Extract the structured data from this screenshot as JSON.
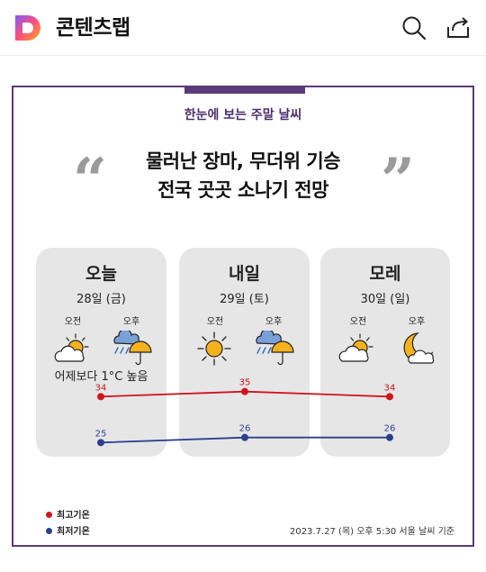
{
  "header": {
    "title": "콘텐츠랩",
    "logo_icon": "logo-d-icon",
    "search_icon": "search-icon",
    "share_icon": "share-icon"
  },
  "card": {
    "subtitle": "한눈에 보는 주말 날씨",
    "headline_line1": "물러난 장마, 무더위 기승",
    "headline_line2": "전국 곳곳 소나기 전망",
    "quote_open": "“",
    "quote_close": "”",
    "accent_color": "#5a3a78",
    "days": [
      {
        "name": "오늘",
        "date": "28일 (금)",
        "am_label": "오전",
        "pm_label": "오후",
        "am_icon": "partly-cloudy-icon",
        "pm_icon": "rain-umbrella-icon",
        "note": "어제보다 1°C 높음"
      },
      {
        "name": "내일",
        "date": "29일 (토)",
        "am_label": "오전",
        "pm_label": "오후",
        "am_icon": "sun-icon",
        "pm_icon": "rain-umbrella-icon",
        "note": ""
      },
      {
        "name": "모레",
        "date": "30일 (일)",
        "am_label": "오전",
        "pm_label": "오후",
        "am_icon": "partly-cloudy-icon",
        "pm_icon": "moon-cloud-icon",
        "note": ""
      }
    ],
    "legend_high": "최고기온",
    "legend_low": "최저기온",
    "high_color": "#d0141c",
    "low_color": "#2b3f8f",
    "footnote": "2023.7.27 (목) 오후 5:30 서울 날씨 기준"
  },
  "chart_data": {
    "type": "line",
    "categories": [
      "오늘",
      "내일",
      "모레"
    ],
    "series": [
      {
        "name": "최고기온",
        "values": [
          34,
          35,
          34
        ]
      },
      {
        "name": "최저기온",
        "values": [
          25,
          26,
          26
        ]
      }
    ]
  }
}
